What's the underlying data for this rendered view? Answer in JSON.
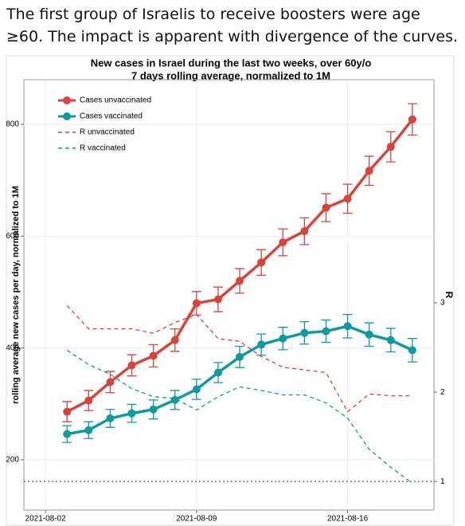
{
  "tweet_text": "The first group of Israelis to receive boosters were age ≥60. The impact is apparent with divergence of the curves.",
  "chart_data": {
    "type": "line",
    "title": "New cases in Israel during the last two weeks, over 60y/o",
    "subtitle": "7 days rolling average, normalized to 1M",
    "y_label": "rolling average new cases per day, normalized to 1M",
    "y2_label": "R",
    "x": [
      "2021-08-03",
      "2021-08-04",
      "2021-08-05",
      "2021-08-06",
      "2021-08-07",
      "2021-08-08",
      "2021-08-09",
      "2021-08-10",
      "2021-08-11",
      "2021-08-12",
      "2021-08-13",
      "2021-08-14",
      "2021-08-15",
      "2021-08-16",
      "2021-08-17",
      "2021-08-18",
      "2021-08-19"
    ],
    "xlim": [
      "2021-08-01",
      "2021-08-20"
    ],
    "xticks": [
      "2021-08-02",
      "2021-08-09",
      "2021-08-16"
    ],
    "ylim": [
      110,
      880
    ],
    "yticks": [
      200,
      400,
      600,
      800
    ],
    "y2lim": [
      0.68,
      5.5
    ],
    "y2ticks": [
      1,
      2,
      3
    ],
    "reference_line": 1,
    "grid": true,
    "legend": "top-left",
    "series": [
      {
        "name": "Cases unvaccinated",
        "color": "#d9443a",
        "style": "solid",
        "axis": "y",
        "values": [
          286,
          306,
          339,
          369,
          386,
          414,
          480,
          487,
          520,
          553,
          589,
          609,
          651,
          667,
          717,
          760,
          809
        ],
        "errors": [
          18,
          18,
          19,
          19,
          20,
          20,
          21,
          22,
          22,
          23,
          24,
          24,
          25,
          26,
          26,
          27,
          28
        ]
      },
      {
        "name": "Cases vaccinated",
        "color": "#0f9a9e",
        "style": "solid",
        "axis": "y",
        "values": [
          246,
          253,
          274,
          283,
          290,
          307,
          326,
          356,
          384,
          406,
          417,
          427,
          430,
          439,
          424,
          414,
          396
        ],
        "errors": [
          15,
          15,
          16,
          16,
          17,
          17,
          18,
          18,
          19,
          19,
          20,
          20,
          20,
          21,
          21,
          21,
          21
        ]
      },
      {
        "name": "R unvaccinated",
        "color": "#d9443a",
        "style": "dashed",
        "axis": "y2",
        "values": [
          2.97,
          2.71,
          2.71,
          2.71,
          2.66,
          2.78,
          2.87,
          2.6,
          2.57,
          2.4,
          2.28,
          2.25,
          2.22,
          1.78,
          1.98,
          1.96,
          1.96
        ]
      },
      {
        "name": "R vaccinated",
        "color": "#0f9a9e",
        "style": "dashed",
        "axis": "y2",
        "values": [
          2.47,
          2.31,
          2.2,
          2.04,
          1.95,
          1.93,
          1.8,
          1.95,
          2.06,
          2.02,
          1.97,
          1.97,
          1.88,
          1.71,
          1.36,
          1.16,
          0.98
        ]
      }
    ]
  }
}
